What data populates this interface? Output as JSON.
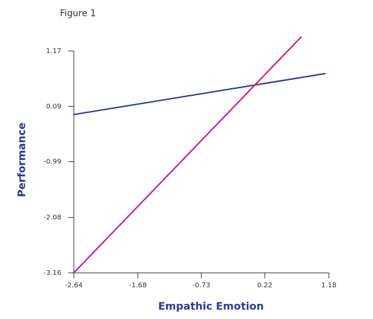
{
  "chart_data": {
    "type": "line",
    "title": "Figure 1",
    "x_label": "Empathic Emotion",
    "y_label": "Performance",
    "xlim": [
      -2.64,
      1.18
    ],
    "xticks": [
      -2.64,
      -1.68,
      -0.73,
      0.22,
      1.18
    ],
    "ylim": [
      -3.16,
      1.17
    ],
    "yticks": [
      -3.16,
      -2.08,
      -0.99,
      0.09,
      1.17
    ],
    "series": [
      {
        "color": "#2e3a8c",
        "x": [
          -2.64,
          1.13
        ],
        "values": [
          -0.07,
          0.73
        ]
      },
      {
        "color": "#d0127e",
        "x": [
          -2.64,
          0.77
        ],
        "values": [
          -3.16,
          1.45
        ]
      }
    ]
  }
}
